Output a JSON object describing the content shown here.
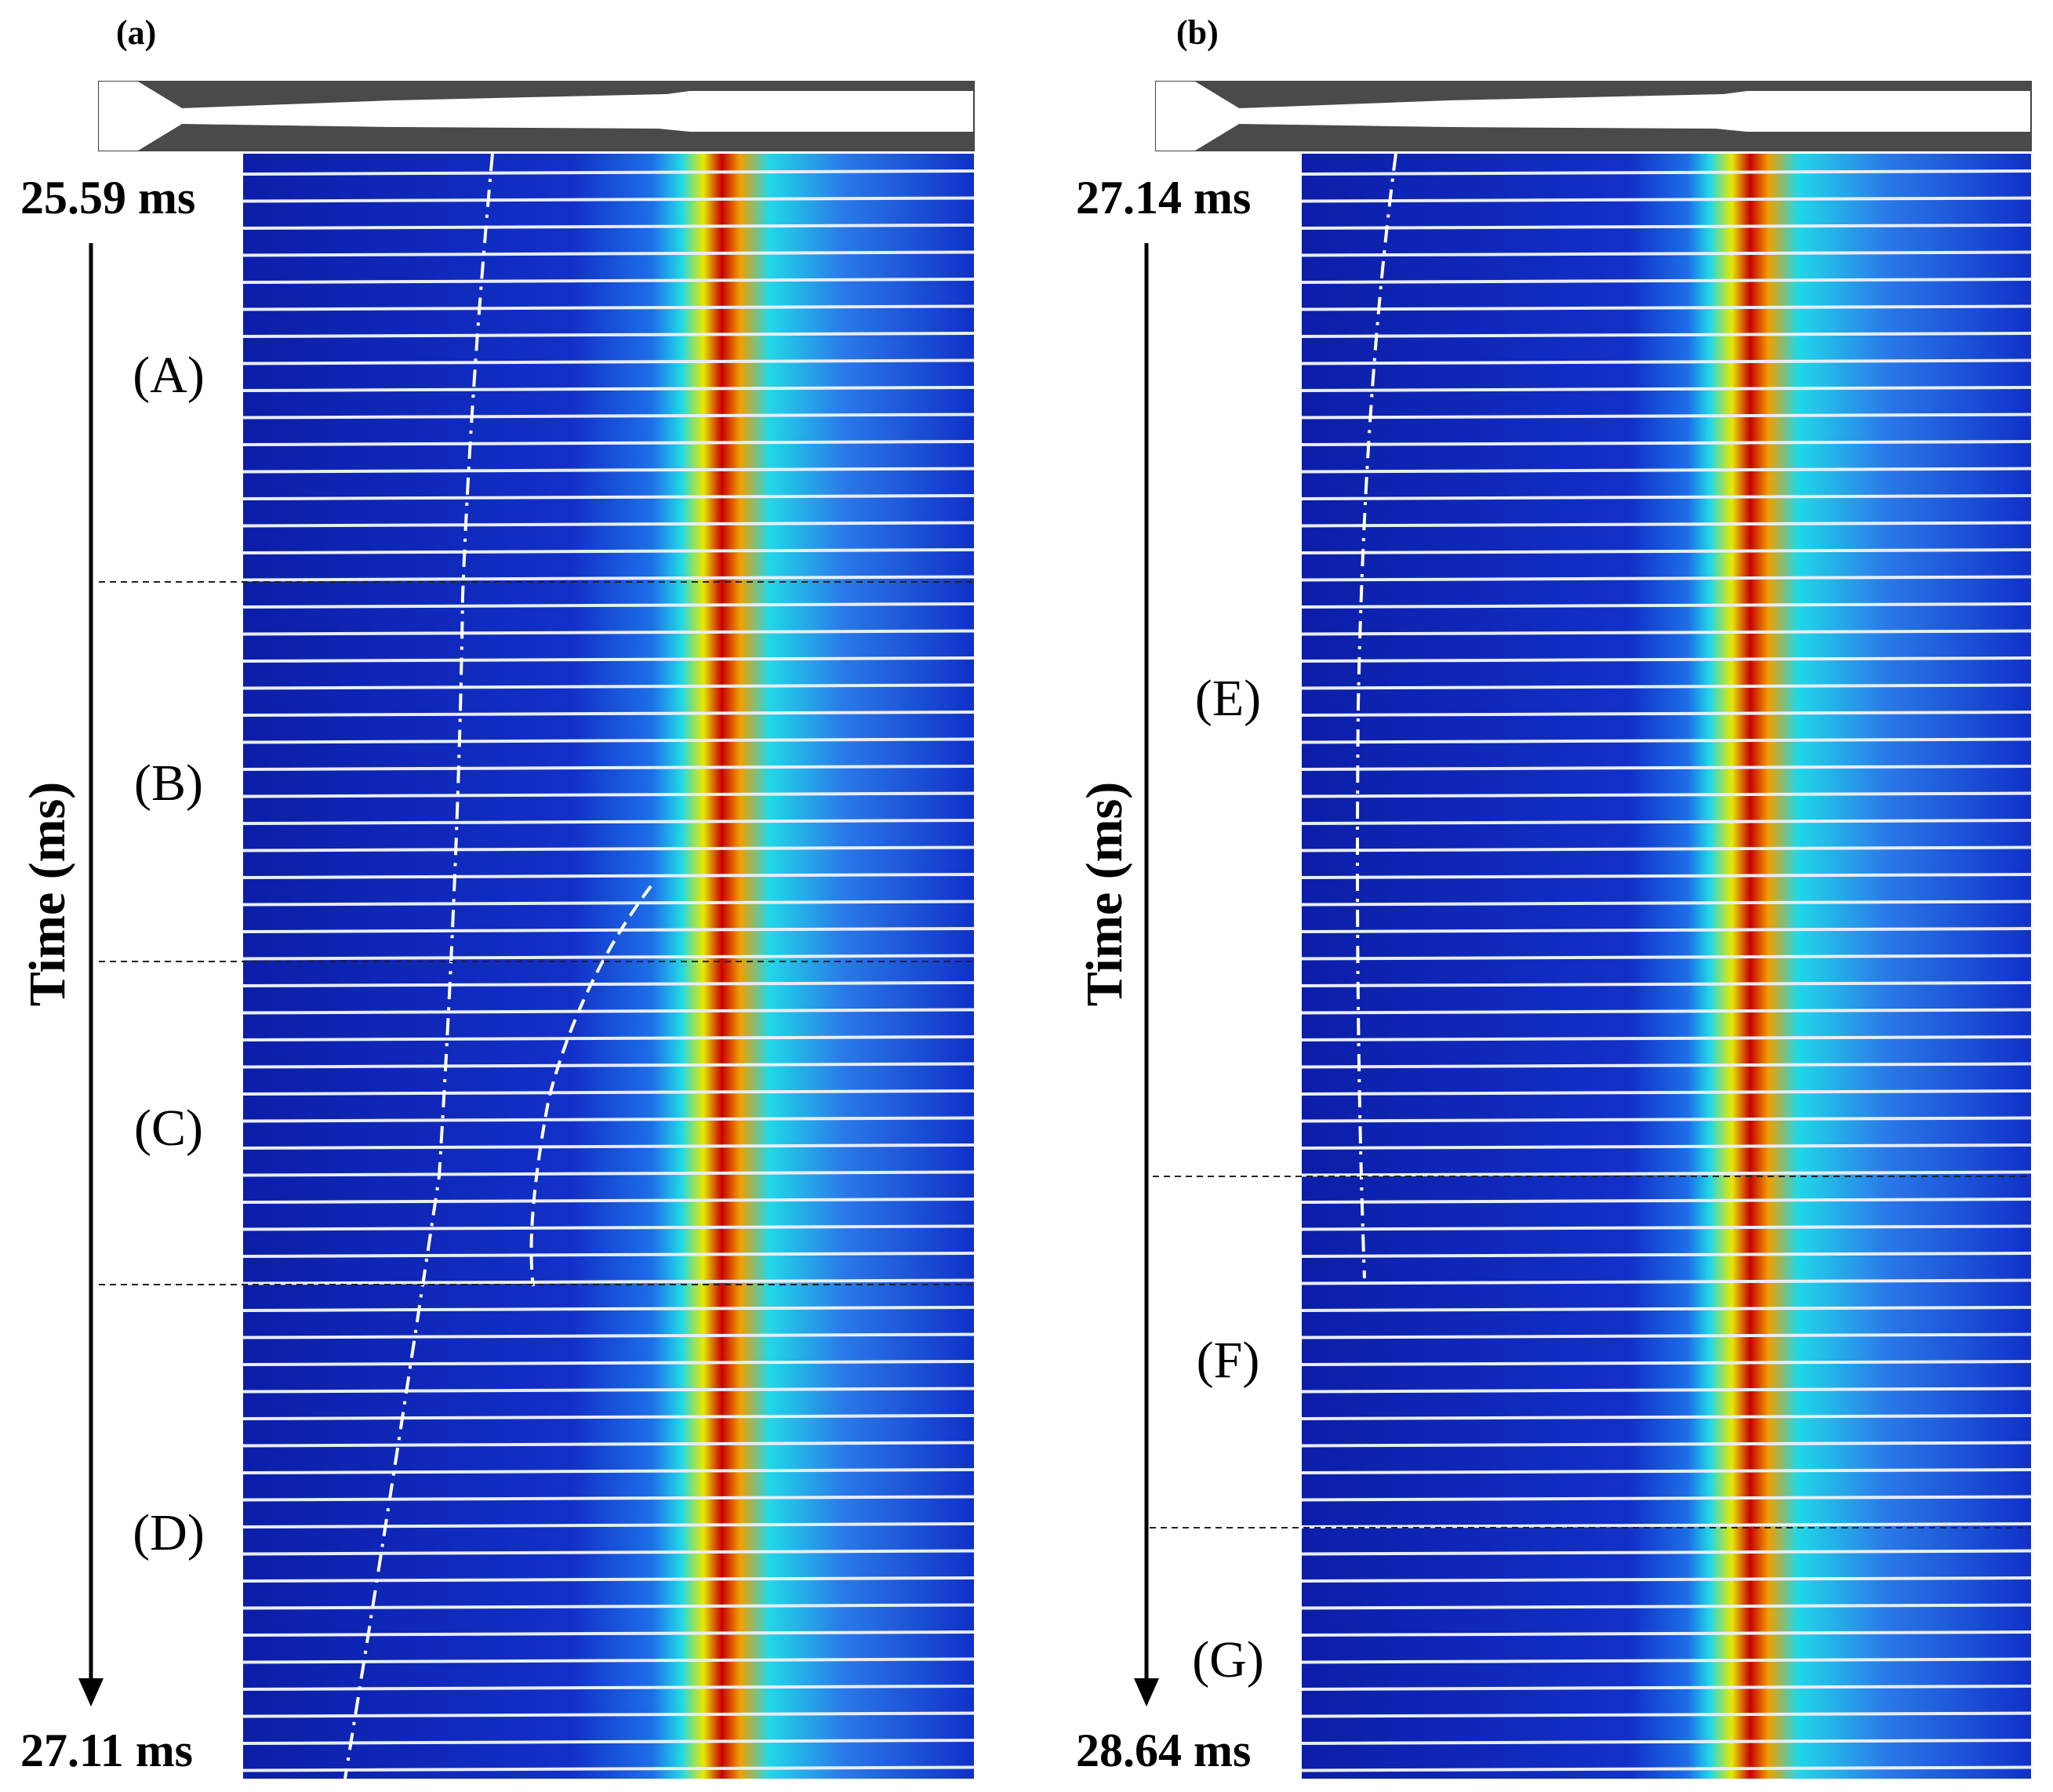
{
  "panels": [
    {
      "id": "a",
      "label": "(a)",
      "start_time": "25.59 ms",
      "end_time": "27.11 ms",
      "axis_title": "Time (ms)",
      "regions": [
        "(A)",
        "(B)",
        "(C)",
        "(D)"
      ]
    },
    {
      "id": "b",
      "label": "(b)",
      "start_time": "27.14 ms",
      "end_time": "28.64 ms",
      "axis_title": "Time (ms)",
      "regions": [
        "(E)",
        "(F)",
        "(G)"
      ]
    }
  ],
  "colormap": [
    "#0a1aa8",
    "#1f4fe0",
    "#14b4f0",
    "#2cf0d8",
    "#f4f000",
    "#f05a00",
    "#c80000"
  ],
  "geometry_colors": {
    "wall": "#4a4a4a",
    "flow": "#ffffff"
  }
}
